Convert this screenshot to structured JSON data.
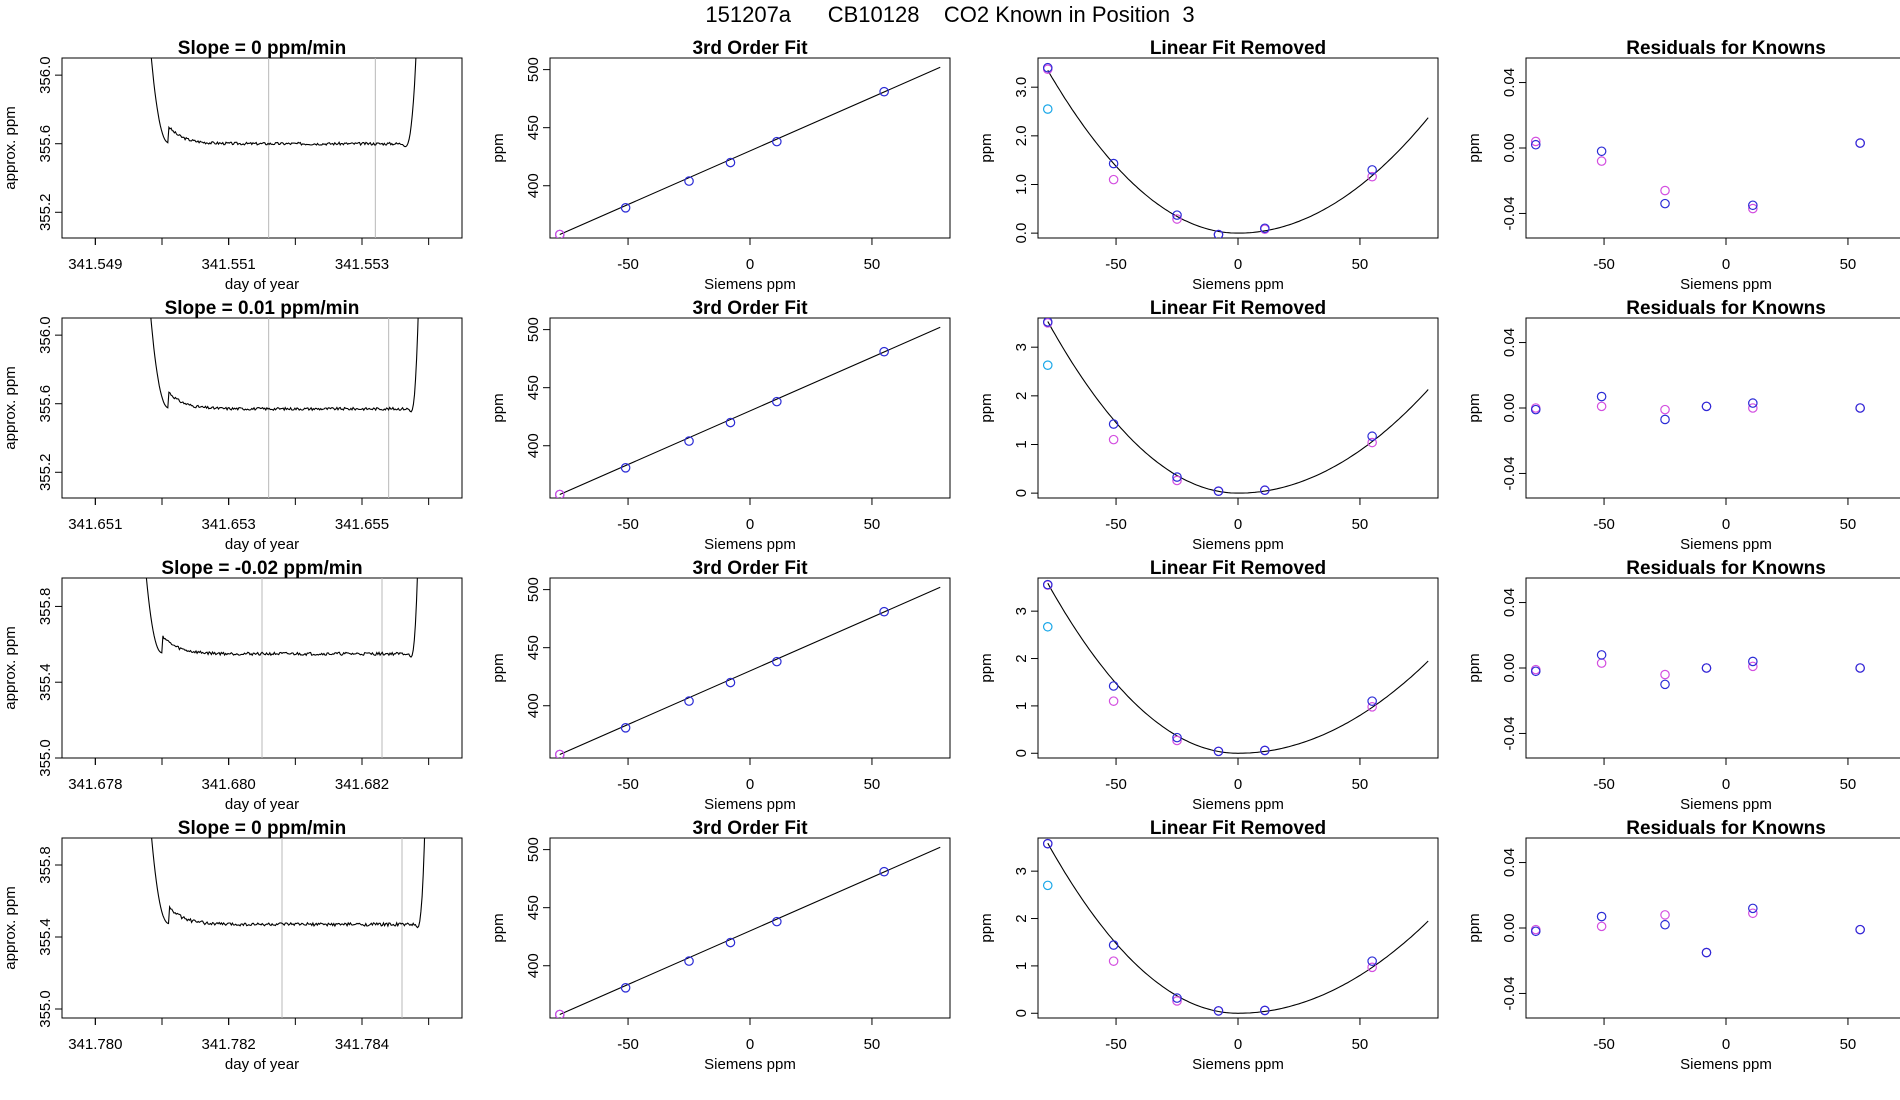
{
  "figure_title": "151207a      CB10128    CO2 Known in Position  3",
  "colors": {
    "blue": "#2b2bd6",
    "magenta": "#d34fe0",
    "cyan": "#19a7e8",
    "line": "#000000",
    "vline": "#b8b8b8"
  },
  "siemens_ticks": [
    -50,
    0,
    50
  ],
  "chart_data": [
    {
      "type": "line",
      "title": "Slope =  0  ppm/min",
      "xlabel": "day of year",
      "ylabel": "approx. ppm",
      "xlim": [
        341.5485,
        341.5545
      ],
      "ylim": [
        355.05,
        356.1
      ],
      "xticks": [
        "341.549",
        "341.551",
        "341.553"
      ],
      "yticks": [
        "355.2",
        "355.6",
        "356.0"
      ],
      "series": {
        "start": 341.5497,
        "end": 341.5539,
        "edge_start": 341.5501,
        "edge_end": 341.5536,
        "plateau": 355.6,
        "noise": 0.008
      },
      "vlines": [
        341.5516,
        341.5532
      ]
    },
    {
      "type": "line",
      "title": "3rd Order Fit",
      "xlabel": "Siemens ppm",
      "ylabel": "ppm",
      "xlim": [
        -82,
        82
      ],
      "ylim": [
        355,
        510
      ],
      "yticks": [
        "400",
        "450",
        "500"
      ],
      "fit_line": [
        [
          -78,
          358
        ],
        [
          78,
          502
        ]
      ],
      "points": [
        [
          -78,
          358
        ],
        [
          -51,
          381
        ],
        [
          -25,
          404
        ],
        [
          -8,
          420
        ],
        [
          11,
          438
        ],
        [
          55,
          481
        ]
      ]
    },
    {
      "type": "scatter",
      "title": "Linear Fit Removed",
      "xlabel": "Siemens ppm",
      "ylabel": "ppm",
      "xlim": [
        -82,
        82
      ],
      "ylim": [
        -0.1,
        3.6
      ],
      "yticks": [
        "0.0",
        "1.0",
        "2.0",
        "3.0"
      ],
      "curve": {
        "center": 0,
        "left_coef": 0.00055,
        "right_coef": 0.00039
      },
      "blue": [
        [
          -78,
          3.4
        ],
        [
          -51,
          1.43
        ],
        [
          -25,
          0.37
        ],
        [
          -8,
          -0.03
        ],
        [
          11,
          0.1
        ],
        [
          55,
          1.3
        ]
      ],
      "magenta": [
        [
          -78,
          3.37
        ],
        [
          -51,
          1.1
        ],
        [
          -25,
          0.29
        ],
        [
          -8,
          -0.03
        ],
        [
          11,
          0.08
        ],
        [
          55,
          1.16
        ]
      ],
      "cyan": [
        [
          -78,
          2.55
        ]
      ]
    },
    {
      "type": "scatter",
      "title": "Residuals for Knowns",
      "xlabel": "Siemens ppm",
      "ylabel": "ppm",
      "xlim": [
        -82,
        82
      ],
      "ylim": [
        -0.055,
        0.055
      ],
      "yticks": [
        "-0.04",
        "0.00",
        "0.04"
      ],
      "blue": [
        [
          -78,
          0.002
        ],
        [
          -51,
          -0.002
        ],
        [
          -25,
          -0.034
        ],
        [
          11,
          -0.035
        ],
        [
          55,
          0.003
        ]
      ],
      "magenta": [
        [
          -78,
          0.004
        ],
        [
          -51,
          -0.008
        ],
        [
          -25,
          -0.026
        ],
        [
          11,
          -0.037
        ],
        [
          55,
          0.003
        ]
      ]
    },
    {
      "type": "line",
      "title": "Slope =  0.01  ppm/min",
      "xlabel": "day of year",
      "ylabel": "approx. ppm",
      "xlim": [
        341.6505,
        341.6565
      ],
      "ylim": [
        355.05,
        356.1
      ],
      "xticks": [
        "341.651",
        "341.653",
        "341.655"
      ],
      "yticks": [
        "355.2",
        "355.6",
        "356.0"
      ],
      "series": {
        "start": 341.6517,
        "end": 341.6559,
        "edge_start": 341.6521,
        "edge_end": 341.6557,
        "plateau": 355.57,
        "noise": 0.008
      },
      "vlines": [
        341.6536,
        341.6554
      ]
    },
    {
      "type": "line",
      "title": "3rd Order Fit",
      "xlabel": "Siemens ppm",
      "ylabel": "ppm",
      "xlim": [
        -82,
        82
      ],
      "ylim": [
        355,
        510
      ],
      "yticks": [
        "400",
        "450",
        "500"
      ],
      "fit_line": [
        [
          -78,
          358
        ],
        [
          78,
          502
        ]
      ],
      "points": [
        [
          -78,
          358
        ],
        [
          -51,
          381
        ],
        [
          -25,
          404
        ],
        [
          -8,
          420
        ],
        [
          11,
          438
        ],
        [
          55,
          481
        ]
      ]
    },
    {
      "type": "scatter",
      "title": "Linear Fit Removed",
      "xlabel": "Siemens ppm",
      "ylabel": "ppm",
      "xlim": [
        -82,
        82
      ],
      "ylim": [
        -0.1,
        3.6
      ],
      "yticks": [
        "0",
        "1",
        "2",
        "3"
      ],
      "curve": {
        "center": 0,
        "left_coef": 0.00058,
        "right_coef": 0.00035
      },
      "blue": [
        [
          -78,
          3.52
        ],
        [
          -51,
          1.42
        ],
        [
          -25,
          0.33
        ],
        [
          -8,
          0.04
        ],
        [
          11,
          0.06
        ],
        [
          55,
          1.17
        ]
      ],
      "magenta": [
        [
          -78,
          3.5
        ],
        [
          -51,
          1.1
        ],
        [
          -25,
          0.26
        ],
        [
          -8,
          0.04
        ],
        [
          11,
          0.06
        ],
        [
          55,
          1.04
        ]
      ],
      "cyan": [
        [
          -78,
          2.63
        ]
      ]
    },
    {
      "type": "scatter",
      "title": "Residuals for Knowns",
      "xlabel": "Siemens ppm",
      "ylabel": "ppm",
      "xlim": [
        -82,
        82
      ],
      "ylim": [
        -0.055,
        0.055
      ],
      "yticks": [
        "-0.04",
        "0.00",
        "0.04"
      ],
      "blue": [
        [
          -78,
          -0.001
        ],
        [
          -51,
          0.007
        ],
        [
          -25,
          -0.007
        ],
        [
          -8,
          0.001
        ],
        [
          11,
          0.003
        ],
        [
          55,
          0.0
        ]
      ],
      "magenta": [
        [
          -78,
          0.0
        ],
        [
          -51,
          0.001
        ],
        [
          -25,
          -0.001
        ],
        [
          -8,
          0.001
        ],
        [
          11,
          0.0
        ],
        [
          55,
          0.0
        ]
      ]
    },
    {
      "type": "line",
      "title": "Slope =  -0.02  ppm/min",
      "xlabel": "day of year",
      "ylabel": "approx. ppm",
      "xlim": [
        341.6775,
        341.6835
      ],
      "ylim": [
        355.0,
        355.95
      ],
      "xticks": [
        "341.678",
        "341.680",
        "341.682"
      ],
      "yticks": [
        "355.0",
        "355.4",
        "355.8"
      ],
      "series": {
        "start": 341.6786,
        "end": 341.6829,
        "edge_start": 341.679,
        "edge_end": 341.6827,
        "plateau": 355.55,
        "noise": 0.008
      },
      "vlines": [
        341.6805,
        341.6823
      ]
    },
    {
      "type": "line",
      "title": "3rd Order Fit",
      "xlabel": "Siemens ppm",
      "ylabel": "ppm",
      "xlim": [
        -82,
        82
      ],
      "ylim": [
        355,
        510
      ],
      "yticks": [
        "400",
        "450",
        "500"
      ],
      "fit_line": [
        [
          -78,
          358
        ],
        [
          78,
          502
        ]
      ],
      "points": [
        [
          -78,
          358
        ],
        [
          -51,
          381
        ],
        [
          -25,
          404
        ],
        [
          -8,
          420
        ],
        [
          11,
          438
        ],
        [
          55,
          481
        ]
      ]
    },
    {
      "type": "scatter",
      "title": "Linear Fit Removed",
      "xlabel": "Siemens ppm",
      "ylabel": "ppm",
      "xlim": [
        -82,
        82
      ],
      "ylim": [
        -0.1,
        3.7
      ],
      "yticks": [
        "0",
        "1",
        "2",
        "3"
      ],
      "curve": {
        "center": 0,
        "left_coef": 0.00059,
        "right_coef": 0.00032
      },
      "blue": [
        [
          -78,
          3.56
        ],
        [
          -51,
          1.42
        ],
        [
          -25,
          0.33
        ],
        [
          -8,
          0.04
        ],
        [
          11,
          0.06
        ],
        [
          55,
          1.1
        ]
      ],
      "magenta": [
        [
          -78,
          3.55
        ],
        [
          -51,
          1.1
        ],
        [
          -25,
          0.27
        ],
        [
          -8,
          0.04
        ],
        [
          11,
          0.06
        ],
        [
          55,
          0.98
        ]
      ],
      "cyan": [
        [
          -78,
          2.67
        ]
      ]
    },
    {
      "type": "scatter",
      "title": "Residuals for Knowns",
      "xlabel": "Siemens ppm",
      "ylabel": "ppm",
      "xlim": [
        -82,
        82
      ],
      "ylim": [
        -0.055,
        0.055
      ],
      "yticks": [
        "-0.04",
        "0.00",
        "0.04"
      ],
      "blue": [
        [
          -78,
          -0.002
        ],
        [
          -51,
          0.008
        ],
        [
          -25,
          -0.01
        ],
        [
          -8,
          0.0
        ],
        [
          11,
          0.004
        ],
        [
          55,
          0.0
        ]
      ],
      "magenta": [
        [
          -78,
          -0.001
        ],
        [
          -51,
          0.003
        ],
        [
          -25,
          -0.004
        ],
        [
          -8,
          0.0
        ],
        [
          11,
          0.001
        ],
        [
          55,
          0.0
        ]
      ]
    },
    {
      "type": "line",
      "title": "Slope =  0  ppm/min",
      "xlabel": "day of year",
      "ylabel": "approx. ppm",
      "xlim": [
        341.7795,
        341.7855
      ],
      "ylim": [
        354.95,
        355.95
      ],
      "xticks": [
        "341.780",
        "341.782",
        "341.784"
      ],
      "yticks": [
        "355.0",
        "355.4",
        "355.8"
      ],
      "series": {
        "start": 341.7807,
        "end": 341.785,
        "edge_start": 341.7811,
        "edge_end": 341.7848,
        "plateau": 355.47,
        "noise": 0.009
      },
      "vlines": [
        341.7828,
        341.7846
      ]
    },
    {
      "type": "line",
      "title": "3rd Order Fit",
      "xlabel": "Siemens ppm",
      "ylabel": "ppm",
      "xlim": [
        -82,
        82
      ],
      "ylim": [
        355,
        510
      ],
      "yticks": [
        "400",
        "450",
        "500"
      ],
      "fit_line": [
        [
          -78,
          358
        ],
        [
          78,
          502
        ]
      ],
      "points": [
        [
          -78,
          358
        ],
        [
          -51,
          381
        ],
        [
          -25,
          404
        ],
        [
          -8,
          420
        ],
        [
          11,
          438
        ],
        [
          55,
          481
        ]
      ]
    },
    {
      "type": "scatter",
      "title": "Linear Fit Removed",
      "xlabel": "Siemens ppm",
      "ylabel": "ppm",
      "xlim": [
        -82,
        82
      ],
      "ylim": [
        -0.1,
        3.7
      ],
      "yticks": [
        "0",
        "1",
        "2",
        "3"
      ],
      "curve": {
        "center": 0,
        "left_coef": 0.00059,
        "right_coef": 0.00032
      },
      "blue": [
        [
          -78,
          3.58
        ],
        [
          -51,
          1.44
        ],
        [
          -25,
          0.32
        ],
        [
          -8,
          0.05
        ],
        [
          11,
          0.06
        ],
        [
          55,
          1.1
        ]
      ],
      "magenta": [
        [
          -78,
          3.58
        ],
        [
          -51,
          1.1
        ],
        [
          -25,
          0.26
        ],
        [
          -8,
          0.05
        ],
        [
          11,
          0.06
        ],
        [
          55,
          0.97
        ]
      ],
      "cyan": [
        [
          -78,
          2.7
        ]
      ]
    },
    {
      "type": "scatter",
      "title": "Residuals for Knowns",
      "xlabel": "Siemens ppm",
      "ylabel": "ppm",
      "xlim": [
        -82,
        82
      ],
      "ylim": [
        -0.055,
        0.055
      ],
      "yticks": [
        "-0.04",
        "0.00",
        "0.04"
      ],
      "blue": [
        [
          -78,
          -0.002
        ],
        [
          -51,
          0.007
        ],
        [
          -25,
          0.002
        ],
        [
          -8,
          -0.015
        ],
        [
          11,
          0.012
        ],
        [
          55,
          -0.001
        ]
      ],
      "magenta": [
        [
          -78,
          -0.001
        ],
        [
          -51,
          0.001
        ],
        [
          -25,
          0.008
        ],
        [
          -8,
          -0.015
        ],
        [
          11,
          0.009
        ],
        [
          55,
          -0.001
        ]
      ]
    }
  ]
}
